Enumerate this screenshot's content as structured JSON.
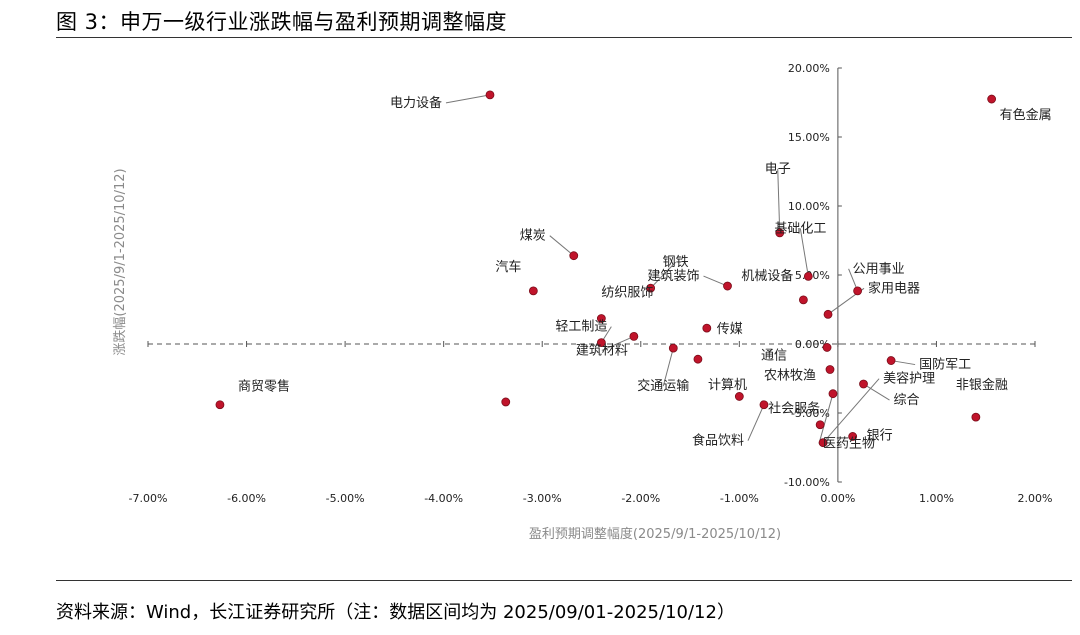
{
  "figure_title": "图 3：申万一级行业涨跌幅与盈利预期调整幅度",
  "source_note": "资料来源：Wind，长江证券研究所（注：数据区间均为 2025/09/01-2025/10/12）",
  "chart_data": {
    "type": "scatter",
    "xlabel": "盈利预期调整幅度(2025/9/1-2025/10/12)",
    "ylabel": "涨跌幅(2025/9/1-2025/10/12)",
    "xlim": [
      -0.07,
      0.02
    ],
    "ylim": [
      -0.1,
      0.2
    ],
    "x_ticks": [
      "-7.00%",
      "-6.00%",
      "-5.00%",
      "-4.00%",
      "-3.00%",
      "-2.00%",
      "-1.00%",
      "0.00%",
      "1.00%",
      "2.00%"
    ],
    "y_ticks": [
      "-10.00%",
      "-5.00%",
      "0.00%",
      "5.00%",
      "10.00%",
      "15.00%",
      "20.00%"
    ],
    "marker_color": "#c0142b",
    "grid": "x-dashed-at-y0",
    "points": [
      {
        "label": "电力设备",
        "x": -0.0353,
        "y": 0.1805
      },
      {
        "label": "有色金属",
        "x": 0.0156,
        "y": 0.1775
      },
      {
        "label": "电子",
        "x": -0.0059,
        "y": 0.0805
      },
      {
        "label": "钢铁",
        "x": -0.019,
        "y": 0.0405
      },
      {
        "label": "煤炭",
        "x": -0.0268,
        "y": 0.064
      },
      {
        "label": "建筑装饰",
        "x": -0.0112,
        "y": 0.042
      },
      {
        "label": "基础化工",
        "x": -0.003,
        "y": 0.049
      },
      {
        "label": "机械设备",
        "x": -0.0035,
        "y": 0.032
      },
      {
        "label": "公用事业",
        "x": 0.002,
        "y": 0.0385
      },
      {
        "label": "家用电器",
        "x": -0.001,
        "y": 0.0215
      },
      {
        "label": "汽车",
        "x": -0.0309,
        "y": 0.0385
      },
      {
        "label": "纺织服饰",
        "x": -0.024,
        "y": 0.0185
      },
      {
        "label": "轻工制造",
        "x": -0.024,
        "y": 0.001
      },
      {
        "label": "传媒",
        "x": -0.0133,
        "y": 0.0115
      },
      {
        "label": "建筑材料",
        "x": -0.0207,
        "y": 0.0055
      },
      {
        "label": "交通运输",
        "x": -0.0167,
        "y": -0.003
      },
      {
        "label": "计算机",
        "x": -0.0142,
        "y": -0.011
      },
      {
        "label": "通信",
        "x": -0.0011,
        "y": -0.0025
      },
      {
        "label": "国防军工",
        "x": 0.0054,
        "y": -0.012
      },
      {
        "label": "农林牧渔",
        "x": -0.0008,
        "y": -0.0185
      },
      {
        "label": "综合",
        "x": 0.0026,
        "y": -0.029
      },
      {
        "label": "非银金融",
        "x": 0.014,
        "y": -0.053
      },
      {
        "label": "商贸零售",
        "x": -0.0627,
        "y": -0.044
      },
      {
        "label": "医药生物",
        "x": -0.0005,
        "y": -0.036
      },
      {
        "label": "食品饮料",
        "x": -0.0075,
        "y": -0.044
      },
      {
        "label": "社会服务",
        "x": -0.0018,
        "y": -0.0585
      },
      {
        "label": "银行",
        "x": 0.0015,
        "y": -0.067
      },
      {
        "label": "美容护理",
        "x": -0.0015,
        "y": -0.0715
      },
      {
        "label": "",
        "x": -0.0337,
        "y": -0.042
      },
      {
        "label": "",
        "x": -0.01,
        "y": -0.038
      }
    ]
  }
}
